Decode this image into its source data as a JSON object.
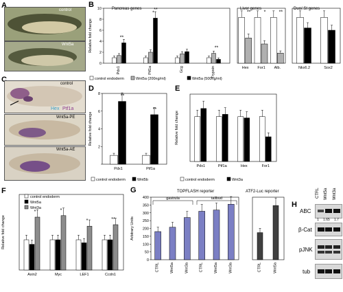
{
  "panels": {
    "A": {
      "letter": "A",
      "labels": [
        "control",
        "Wnt5a"
      ]
    },
    "C": {
      "letter": "C",
      "labels": [
        "control",
        "Wnt5a-PE",
        "Wnt5a-AE"
      ],
      "stain_hex": "Hex",
      "stain_ptf": "Ptf1a"
    },
    "H": {
      "letter": "H",
      "lanes": [
        "CTRL",
        "Wnt5a",
        "Wnt3a"
      ],
      "rows": [
        "ABC",
        "β-Cat",
        "pJNK",
        "tub"
      ],
      "abc_values": [
        "1",
        "1.65",
        "1.7"
      ]
    }
  },
  "chart_data": [
    {
      "id": "B1",
      "type": "bar",
      "letter": "B",
      "title": "Pancreas genes",
      "ylabel": "Relative fold change",
      "ylim": [
        0,
        10
      ],
      "yticks": [
        "0",
        "2",
        "4",
        "6",
        "8",
        "10"
      ],
      "categories": [
        "Pdx1",
        "Ptf1a",
        "Gcg",
        "Trypsin"
      ],
      "series": [
        {
          "name": "control endoderm",
          "color": "#ffffff",
          "values": [
            1,
            1,
            1,
            1
          ]
        },
        {
          "name": "Wnt5a (200ng/ml)",
          "color": "#b0b0b0",
          "values": [
            1.4,
            2.0,
            1.7,
            1.8
          ]
        },
        {
          "name": "Wnt5a (500ng/ml)",
          "color": "#000000",
          "values": [
            3.7,
            8.2,
            2.1,
            0.7
          ]
        }
      ],
      "stars": [
        "**",
        "*",
        "",
        "**"
      ],
      "stars2": [
        "",
        "**",
        "",
        ""
      ]
    },
    {
      "id": "B2",
      "type": "bar",
      "title": "Liver genes",
      "ylim": [
        0,
        1.2
      ],
      "categories": [
        "Hex",
        "For1",
        "Alb."
      ],
      "series": [
        {
          "name": "control endoderm",
          "color": "#ffffff",
          "values": [
            1,
            1,
            1
          ]
        },
        {
          "name": "Wnt5a (200ng/ml)",
          "color": "#b0b0b0",
          "values": [
            0.55,
            0.42,
            0.22
          ]
        }
      ],
      "stars": [
        "**",
        "*",
        "**"
      ]
    },
    {
      "id": "B3",
      "type": "bar",
      "title": "Duo/.St genes",
      "ylim": [
        0,
        1.2
      ],
      "categories": [
        "Nkx6.2",
        "Sox2"
      ],
      "series": [
        {
          "name": "control endoderm",
          "color": "#ffffff",
          "values": [
            1,
            1
          ]
        },
        {
          "name": "Wnt5a (500ng/ml)",
          "color": "#000000",
          "values": [
            0.77,
            0.72
          ]
        }
      ],
      "stars": [
        "",
        ""
      ]
    },
    {
      "id": "D",
      "type": "bar",
      "letter": "D",
      "ylabel": "Relative fold change",
      "ylim": [
        0,
        8
      ],
      "yticks": [
        "",
        "2",
        "4",
        "6",
        "8"
      ],
      "categories": [
        "Pdx1",
        "Ptf1a"
      ],
      "series": [
        {
          "name": "control endoderm",
          "color": "#ffffff",
          "values": [
            1,
            1
          ]
        },
        {
          "name": "Wnt5b",
          "color": "#000000",
          "values": [
            7.1,
            5.6
          ]
        }
      ],
      "stars": [
        "**",
        "**"
      ]
    },
    {
      "id": "E",
      "type": "bar",
      "letter": "E",
      "ylabel": "Relative fold change",
      "ylim": [
        0,
        1.5
      ],
      "categories": [
        "Pdx1",
        "Ptf1a",
        "Hex",
        "For1"
      ],
      "series": [
        {
          "name": "control endoderm",
          "color": "#ffffff",
          "values": [
            1,
            1,
            1,
            1
          ]
        },
        {
          "name": "Wnt3a",
          "color": "#000000",
          "values": [
            1.18,
            1.05,
            0.97,
            0.55
          ]
        }
      ],
      "stars": [
        "",
        "",
        "",
        ""
      ]
    },
    {
      "id": "F",
      "type": "bar",
      "letter": "F",
      "ylabel": "Relative fold change",
      "ylim": [
        0,
        2.5
      ],
      "categories": [
        "Axin2",
        "Myc",
        "LEF1",
        "Ccdn1"
      ],
      "series": [
        {
          "name": "control endoderm",
          "color": "#ffffff",
          "values": [
            1,
            1,
            1,
            1
          ]
        },
        {
          "name": "Wnt5a",
          "color": "#000000",
          "values": [
            0.85,
            1,
            0.9,
            1
          ]
        },
        {
          "name": "Wnt3a",
          "color": "#8c8c8c",
          "values": [
            1.75,
            1.8,
            1.45,
            1.5
          ]
        }
      ],
      "stars": [
        "*",
        "*",
        "*",
        "**"
      ]
    },
    {
      "id": "G1",
      "type": "bar",
      "letter": "G",
      "title": "TOPFLASH reporter",
      "ylabel": "Arbitrary Units",
      "ylim": [
        0,
        400
      ],
      "yticks": [
        "0",
        "50",
        "100",
        "150",
        "200",
        "250",
        "300",
        "350",
        "400"
      ],
      "groups": [
        "gastrula",
        "tailbud"
      ],
      "categories": [
        "CTRL",
        "Wnt5a",
        "Wnt3a",
        "CTRL",
        "Wnt5a",
        "Wnt3a"
      ],
      "series": [
        {
          "color": "#7b7fc4",
          "values": [
            180,
            208,
            270,
            310,
            318,
            355
          ]
        }
      ]
    },
    {
      "id": "G2",
      "type": "bar",
      "title": "ATF2-Luc reporter",
      "ylim": [
        0,
        60
      ],
      "categories": [
        "CTRL",
        "Wnt5a"
      ],
      "series": [
        {
          "color": "#404040",
          "values": [
            26,
            52
          ]
        }
      ]
    }
  ]
}
